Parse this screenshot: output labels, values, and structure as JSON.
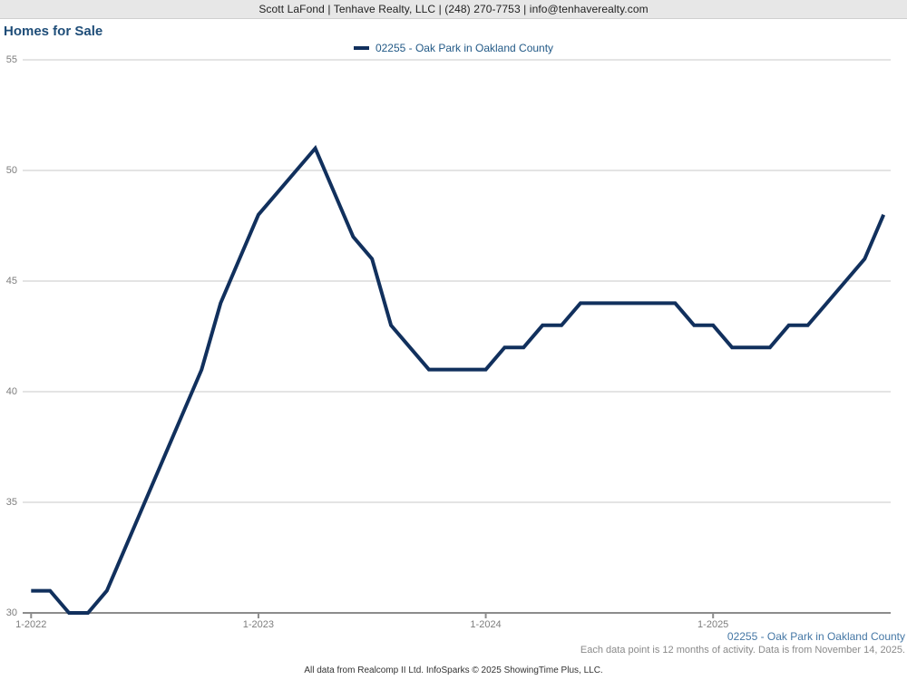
{
  "header": {
    "contact_line": "Scott LaFond | Tenhave Realty, LLC | (248) 270-7753 | info@tenhaverealty.com"
  },
  "title": "Homes for Sale",
  "legend": {
    "label": "02255 - Oak Park in Oakland County"
  },
  "footer": {
    "series_label": "02255 - Oak Park in Oakland County",
    "note": "Each data point is 12 months of activity. Data is from November 14, 2025.",
    "attribution": "All data from Realcomp II Ltd. InfoSparks © 2025 ShowingTime Plus, LLC."
  },
  "colors": {
    "line": "#11305d",
    "title_text": "#1e4d78",
    "legend_text": "#235a87",
    "series_label_text": "#4577a5",
    "axis_text": "#7d7d7d",
    "gridline": "#c9c9c9",
    "axis_line": "#8c8c8c",
    "header_bg": "#e7e7e7",
    "note_text": "#8a8a8a",
    "attribution_text": "#333333"
  },
  "chart_data": {
    "type": "line",
    "title": "Homes for Sale",
    "xlabel": "",
    "ylabel": "",
    "ylim": [
      30,
      55
    ],
    "yticks": [
      30,
      35,
      40,
      45,
      50,
      55
    ],
    "grid": true,
    "legend_position": "top-center",
    "x": [
      "1-2022",
      "2-2022",
      "3-2022",
      "4-2022",
      "5-2022",
      "6-2022",
      "7-2022",
      "8-2022",
      "9-2022",
      "10-2022",
      "11-2022",
      "12-2022",
      "1-2023",
      "2-2023",
      "3-2023",
      "4-2023",
      "5-2023",
      "6-2023",
      "7-2023",
      "8-2023",
      "9-2023",
      "10-2023",
      "11-2023",
      "12-2023",
      "1-2024",
      "2-2024",
      "3-2024",
      "4-2024",
      "5-2024",
      "6-2024",
      "7-2024",
      "8-2024",
      "9-2024",
      "10-2024",
      "11-2024",
      "12-2024",
      "1-2025",
      "2-2025",
      "3-2025",
      "4-2025",
      "5-2025",
      "6-2025",
      "7-2025",
      "8-2025",
      "9-2025",
      "10-2025"
    ],
    "xticks": [
      {
        "label": "1-2022",
        "index": 0
      },
      {
        "label": "1-2023",
        "index": 12
      },
      {
        "label": "1-2024",
        "index": 24
      },
      {
        "label": "1-2025",
        "index": 36
      }
    ],
    "series": [
      {
        "name": "02255 - Oak Park in Oakland County",
        "values": [
          31,
          31,
          30,
          30,
          31,
          33,
          35,
          37,
          39,
          41,
          44,
          46,
          48,
          49,
          50,
          51,
          49,
          47,
          46,
          43,
          42,
          41,
          41,
          41,
          41,
          42,
          42,
          43,
          43,
          44,
          44,
          44,
          44,
          44,
          44,
          43,
          43,
          42,
          42,
          42,
          43,
          43,
          44,
          45,
          46,
          48
        ]
      }
    ]
  }
}
